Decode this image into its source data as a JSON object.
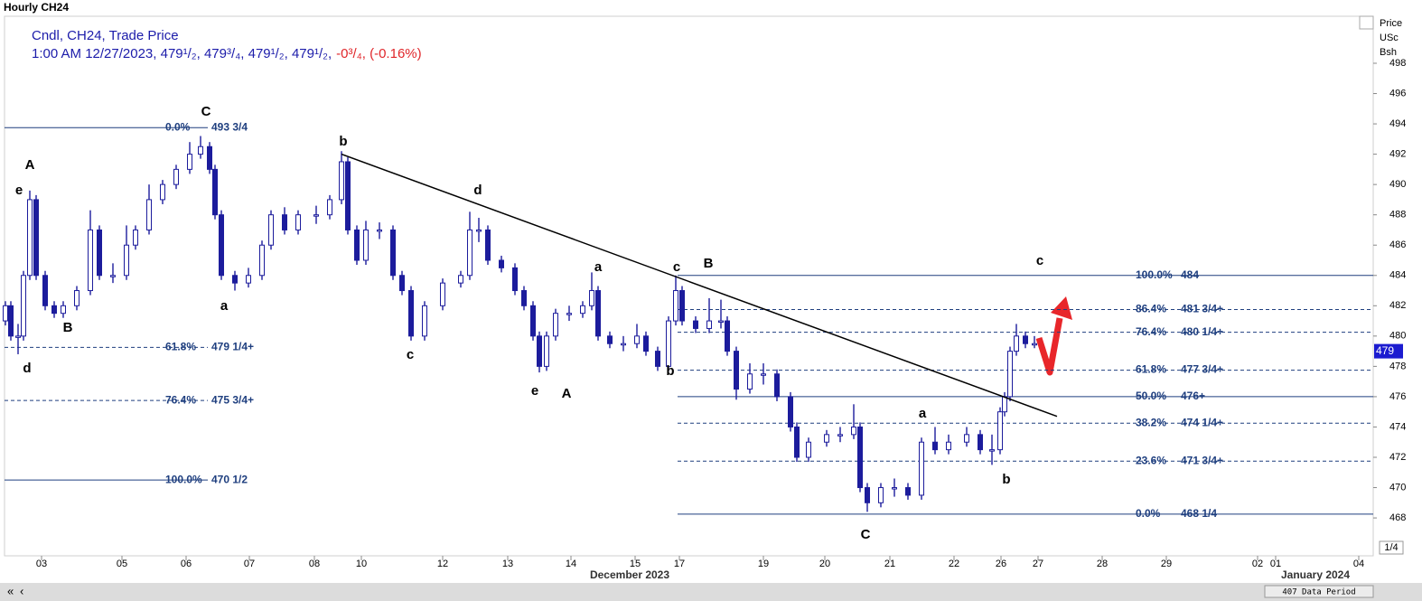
{
  "chart_data": {
    "type": "candlestick",
    "title": "Hourly CH24",
    "legend_line1": "Cndl, CH24, Trade Price",
    "legend_line2": "1:00 AM 12/27/2023, 479¹/₂, 479³/₄, 479¹/₂, 479¹/₂,",
    "legend_change": "-0³/₄, (-0.16%)",
    "y_axis_label": [
      "Price",
      "USc",
      "Bsh"
    ],
    "color": "#1c1c9c",
    "x": [
      0.6,
      1.2,
      2.0,
      2.6,
      3.3,
      4.0,
      5.0,
      6.0,
      7.0,
      8.5,
      10.0,
      11.0,
      12.5,
      14.0,
      15.0,
      16.5,
      18.0,
      19.5,
      21.0,
      22.2,
      23.2,
      23.8,
      24.5,
      26.0,
      27.5,
      29.0,
      30.0,
      31.5,
      33.0,
      35.0,
      36.5,
      37.8,
      38.5,
      39.5,
      40.5,
      42.0,
      43.5,
      44.5,
      45.5,
      47.0,
      49.0,
      51.0,
      52.0,
      53.0,
      54.0,
      55.5,
      57.0,
      58.0,
      59.0,
      59.7,
      60.5,
      61.5,
      63.0,
      64.5,
      65.5,
      66.2,
      67.5,
      69.0,
      70.5,
      71.5,
      72.8,
      74.0,
      74.8,
      75.5,
      77.0,
      78.5,
      79.8,
      80.5,
      81.5,
      83.0,
      84.5,
      86.0,
      87.5,
      88.2,
      89.5,
      91.5,
      93.0,
      94.5,
      95.2,
      96.0,
      97.5,
      99.0,
      100.5,
      102.0,
      103.5,
      105.0,
      107.0,
      108.5,
      109.8,
      110.7,
      111.2,
      111.8,
      112.5,
      113.5,
      114.5
    ],
    "open": [
      481,
      482,
      480,
      480,
      484,
      489,
      484,
      482,
      481.5,
      482,
      483,
      487,
      484,
      484,
      486,
      487,
      489,
      490,
      491,
      492,
      492.5,
      491,
      488,
      484,
      483.5,
      484,
      486,
      488,
      487,
      488,
      488,
      489,
      491.5,
      487,
      485,
      487,
      487,
      484,
      483,
      480,
      482,
      483.5,
      484,
      487,
      487,
      485,
      484.5,
      483,
      482,
      480,
      478,
      480,
      481.5,
      481.5,
      482,
      483,
      480,
      479.5,
      479.5,
      480,
      479,
      478,
      481,
      483,
      481,
      480.5,
      481,
      481,
      479,
      476.5,
      477.5,
      477.5,
      476,
      474,
      472,
      473,
      473.5,
      473.5,
      474,
      470,
      469,
      470,
      470,
      469.5,
      473,
      472.5,
      473,
      473.5,
      472.5,
      472.5,
      475,
      476,
      479,
      480,
      479.5
    ],
    "high": [
      482.3,
      482.3,
      480.8,
      484.3,
      489.6,
      489.3,
      484.3,
      482.3,
      482.3,
      483.3,
      488.3,
      487.3,
      484.8,
      487.3,
      487.3,
      490,
      490.3,
      491.3,
      492.8,
      493.2,
      492.8,
      491.3,
      488.3,
      484.3,
      484.5,
      486.3,
      488.3,
      488.5,
      488.3,
      488.6,
      489.3,
      492.2,
      491.8,
      487.3,
      487.6,
      487.5,
      487.3,
      484.3,
      483.3,
      482.3,
      483.8,
      484.3,
      488.2,
      487.8,
      487.3,
      485.3,
      484.8,
      483.3,
      482.3,
      480.3,
      480.3,
      481.8,
      482,
      482.3,
      484.2,
      483.3,
      480.3,
      480,
      480.8,
      480.3,
      479.3,
      481.3,
      484,
      483.3,
      481.3,
      482.5,
      482.4,
      481.3,
      479.3,
      478.2,
      478.2,
      477.8,
      476.3,
      474.3,
      473.3,
      473.8,
      474,
      475.5,
      474.3,
      470.3,
      470.3,
      470.6,
      470.3,
      473.3,
      474,
      473.5,
      474,
      473.8,
      473.5,
      475.3,
      476.3,
      479.3,
      480.8,
      480.3,
      480
    ],
    "low": [
      480.7,
      479.7,
      478.8,
      479.7,
      483.7,
      483.7,
      481.7,
      481.2,
      481.2,
      481.7,
      482.7,
      483.7,
      483.5,
      483.7,
      485.7,
      486.7,
      488.7,
      489.7,
      490.7,
      491.7,
      490.7,
      487.7,
      483.7,
      483,
      483.2,
      483.7,
      485.7,
      486.7,
      486.7,
      487.4,
      487.7,
      488.7,
      486.7,
      484.7,
      484.7,
      486.4,
      483.7,
      482.7,
      479.7,
      479.7,
      481.7,
      483.2,
      483.7,
      486.2,
      484.7,
      484.2,
      482.7,
      481.7,
      479.7,
      477.6,
      477.7,
      479.7,
      481,
      481.2,
      481.7,
      479.7,
      479.2,
      479,
      479.2,
      478.7,
      477.7,
      477.7,
      480.7,
      480.7,
      480.2,
      480.2,
      480.5,
      478.7,
      475.8,
      476.2,
      476.8,
      475.7,
      473.7,
      471.7,
      471.7,
      472.7,
      473,
      473.2,
      469.7,
      468.4,
      468.7,
      469.4,
      469.2,
      469.2,
      472.2,
      472.2,
      472.7,
      472.2,
      471.5,
      472.2,
      474.7,
      475.7,
      478.7,
      479.2,
      479.2
    ],
    "close": [
      482,
      480,
      480,
      484,
      489,
      484,
      482,
      481.5,
      482,
      483,
      487,
      484,
      484,
      486,
      487,
      489,
      490,
      491,
      492,
      492.5,
      491,
      488,
      484,
      483.5,
      484,
      486,
      488,
      487,
      488,
      488,
      489,
      491.5,
      487,
      485,
      487,
      487,
      484,
      483,
      480,
      482,
      483.5,
      484,
      487,
      487,
      485,
      484.5,
      483,
      482,
      480,
      478,
      480,
      481.5,
      481.5,
      482,
      483,
      480,
      479.5,
      479.5,
      480,
      479,
      478,
      481,
      483,
      481,
      480.5,
      481,
      481,
      479,
      476.5,
      477.5,
      477.5,
      476,
      474,
      472,
      473,
      473.5,
      473.5,
      474,
      470,
      469,
      470,
      470,
      469.5,
      473,
      472.5,
      473,
      473.5,
      472.5,
      472.5,
      475,
      476,
      479,
      480,
      479.5,
      479.5
    ],
    "xlim": [
      0.5,
      152
    ],
    "xticks": [
      {
        "value": 4.6,
        "label": "03"
      },
      {
        "value": 13.5,
        "label": "05"
      },
      {
        "value": 20.6,
        "label": "06"
      },
      {
        "value": 27.6,
        "label": "07"
      },
      {
        "value": 34.8,
        "label": "08"
      },
      {
        "value": 40.0,
        "label": "10"
      },
      {
        "value": 49.0,
        "label": "12"
      },
      {
        "value": 56.2,
        "label": "13"
      },
      {
        "value": 63.2,
        "label": "14"
      },
      {
        "value": 70.3,
        "label": "15"
      },
      {
        "value": 75.2,
        "label": "17"
      },
      {
        "value": 84.5,
        "label": "19"
      },
      {
        "value": 91.3,
        "label": "20"
      },
      {
        "value": 98.5,
        "label": "21"
      },
      {
        "value": 105.6,
        "label": "22"
      },
      {
        "value": 110.8,
        "label": "26"
      },
      {
        "value": 114.9,
        "label": "27"
      },
      {
        "value": 122.0,
        "label": "28"
      },
      {
        "value": 129.1,
        "label": "29"
      },
      {
        "value": 139.2,
        "label": "02"
      },
      {
        "value": 141.2,
        "label": "01"
      },
      {
        "value": 150.4,
        "label": "04"
      }
    ],
    "x_sublabels": [
      "December 2023",
      "January 2024"
    ],
    "ylim": [
      465.5,
      501.1
    ],
    "yticks": [
      468,
      470,
      472,
      474,
      476,
      478,
      480,
      482,
      484,
      486,
      488,
      490,
      492,
      494,
      496,
      498
    ],
    "last_price": 479,
    "trendline": {
      "x": [
        37.8,
        117.0
      ],
      "y": [
        492,
        474.7
      ]
    },
    "fib_left": [
      {
        "pct": "0.0%",
        "price": {
          "value": 493.75,
          "label": "493 3/4"
        },
        "style": "solid"
      },
      {
        "pct": "61.8%",
        "price": {
          "value": 479.25,
          "label": "479 1/4+"
        },
        "style": "dashed"
      },
      {
        "pct": "76.4%",
        "price": {
          "value": 475.75,
          "label": "475 3/4+"
        },
        "style": "dashed"
      },
      {
        "pct": "100.0%",
        "price": {
          "value": 470.5,
          "label": "470 1/2"
        },
        "style": "solid"
      }
    ],
    "fib_right": [
      {
        "pct": "100.0%",
        "price": 484,
        "style": "solid"
      },
      {
        "pct": "86.4%",
        "price": {
          "value": 481.75,
          "label": "481 3/4+"
        },
        "style": "dashed"
      },
      {
        "pct": "76.4%",
        "price": {
          "value": 480.25,
          "label": "480 1/4+"
        },
        "style": "dashed"
      },
      {
        "pct": "61.8%",
        "price": {
          "value": 477.75,
          "label": "477 3/4+"
        },
        "style": "dashed"
      },
      {
        "pct": "50.0%",
        "price": {
          "value": 476,
          "label": "476+"
        },
        "style": "solid"
      },
      {
        "pct": "38.2%",
        "price": {
          "value": 474.25,
          "label": "474 1/4+"
        },
        "style": "dashed"
      },
      {
        "pct": "23.6%",
        "price": {
          "value": 471.75,
          "label": "471 3/4+"
        },
        "style": "dashed"
      },
      {
        "pct": "0.0%",
        "price": {
          "value": 468.25,
          "label": "468 1/4"
        },
        "style": "solid"
      }
    ],
    "wave_labels": [
      "A",
      "e",
      "d",
      "B",
      "C",
      "a",
      "b",
      "d",
      "c",
      "a",
      "e",
      "A",
      "c",
      "B",
      "b",
      "c",
      "a",
      "b",
      "C"
    ],
    "footer": "407 Data Period",
    "page_label": "1/4"
  }
}
